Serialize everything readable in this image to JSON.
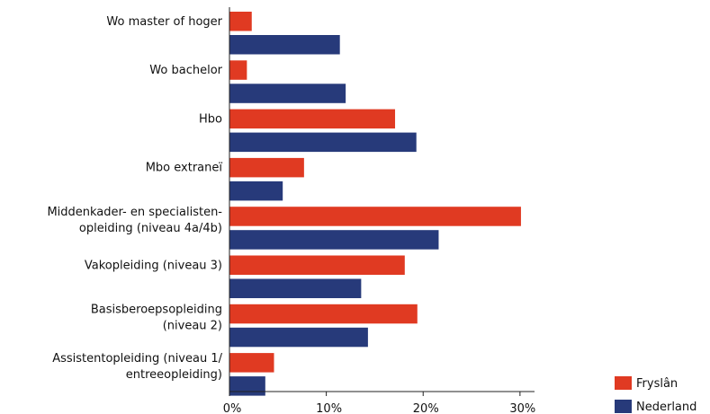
{
  "chart_data": {
    "type": "bar",
    "orientation": "horizontal",
    "categories": [
      [
        "Wo master of hoger"
      ],
      [
        "Wo bachelor"
      ],
      [
        "Hbo"
      ],
      [
        "Mbo extraneï"
      ],
      [
        "Middenkader- en specialisten-",
        "opleiding (niveau 4a/4b)"
      ],
      [
        "Vakopleiding (niveau 3)"
      ],
      [
        "Basisberoepsopleiding",
        "(niveau 2)"
      ],
      [
        "Assistentopleiding (niveau 1/",
        "entreeopleiding)"
      ]
    ],
    "series": [
      {
        "name": "Fryslân",
        "color": "#e03a22",
        "values": [
          2.3,
          1.8,
          17.1,
          7.7,
          30.1,
          18.1,
          19.4,
          4.6
        ]
      },
      {
        "name": "Nederland",
        "color": "#273a7a",
        "values": [
          11.4,
          12.0,
          19.3,
          5.5,
          21.6,
          13.6,
          14.3,
          3.7
        ]
      }
    ],
    "xlim": [
      0,
      31.5
    ],
    "xticks": [
      0,
      10,
      20,
      30
    ],
    "tick_labels": [
      "0%",
      "10%",
      "20%",
      "30%"
    ],
    "legend": "bottom-right",
    "grid": false
  }
}
